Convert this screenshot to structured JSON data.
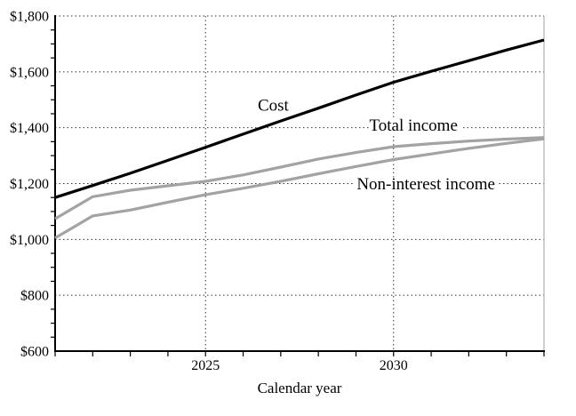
{
  "chart_data": {
    "type": "line",
    "title": "",
    "xlabel": "Calendar year",
    "ylabel": "",
    "xlim": [
      2021,
      2034
    ],
    "ylim": [
      600,
      1800
    ],
    "x": [
      2021,
      2022,
      2023,
      2024,
      2025,
      2026,
      2027,
      2028,
      2029,
      2030,
      2031,
      2032,
      2033,
      2034
    ],
    "x_major_ticks": [
      {
        "value": 2025,
        "label": "2025"
      },
      {
        "value": 2030,
        "label": "2030"
      }
    ],
    "y_major_ticks": [
      {
        "value": 600,
        "label": "$600"
      },
      {
        "value": 800,
        "label": "$800"
      },
      {
        "value": 1000,
        "label": "$1,000"
      },
      {
        "value": 1200,
        "label": "$1,200"
      },
      {
        "value": 1400,
        "label": "$1,400"
      },
      {
        "value": 1600,
        "label": "$1,600"
      },
      {
        "value": 1800,
        "label": "$1,800"
      }
    ],
    "y_minor_tick_step": 50,
    "grid": {
      "horizontal": "dotted at each $200 major tick",
      "vertical": "dotted at labeled years 2025 and 2030"
    },
    "legend_position": "inline-labels-on-chart",
    "series": [
      {
        "name": "Cost",
        "color": "#000000",
        "width": 3.2,
        "values": [
          1150,
          1193,
          1237,
          1283,
          1330,
          1377,
          1424,
          1470,
          1517,
          1563,
          1602,
          1640,
          1678,
          1714
        ]
      },
      {
        "name": "Total income",
        "color": "#a3a3a3",
        "width": 3.2,
        "values": [
          1074,
          1153,
          1176,
          1192,
          1208,
          1231,
          1259,
          1288,
          1311,
          1332,
          1343,
          1352,
          1359,
          1365
        ]
      },
      {
        "name": "Non-interest income",
        "color": "#a3a3a3",
        "width": 3.2,
        "values": [
          1005,
          1084,
          1105,
          1133,
          1160,
          1183,
          1208,
          1235,
          1261,
          1286,
          1306,
          1326,
          1344,
          1360
        ]
      }
    ],
    "annotations": [
      {
        "text": "Cost",
        "x": 2026.8,
        "y": 1482
      },
      {
        "text": "Total income",
        "x": 2030.53,
        "y": 1410
      },
      {
        "text": "Non-interest income",
        "x": 2030.86,
        "y": 1200
      }
    ]
  },
  "colors": {
    "background": "#ffffff",
    "axis": "#000000",
    "grid": "#333333",
    "right_border": "#b0b0b0",
    "gray_series": "#a3a3a3",
    "text": "#000000"
  }
}
